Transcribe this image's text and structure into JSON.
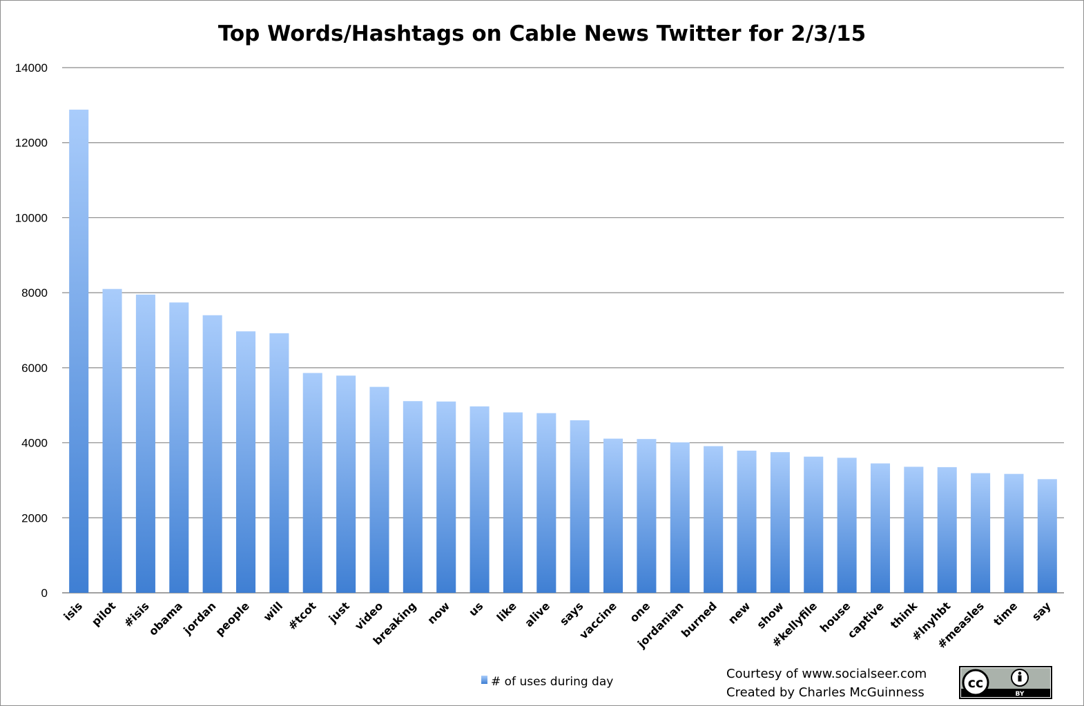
{
  "chart_data": {
    "type": "bar",
    "title": "Top Words/Hashtags on Cable News Twitter for 2/3/15",
    "xlabel": "",
    "ylabel": "",
    "ylim": [
      0,
      14000
    ],
    "yticks": [
      0,
      2000,
      4000,
      6000,
      8000,
      10000,
      12000,
      14000
    ],
    "grid": true,
    "legend_position": "bottom",
    "categories": [
      "isis",
      "pilot",
      "#isis",
      "obama",
      "jordan",
      "people",
      "will",
      "#tcot",
      "just",
      "video",
      "breaking",
      "now",
      "us",
      "like",
      "alive",
      "says",
      "vaccine",
      "one",
      "jordanian",
      "burned",
      "new",
      "show",
      "#kellyfile",
      "house",
      "captive",
      "think",
      "#lnyhbt",
      "#measles",
      "time",
      "say"
    ],
    "series": [
      {
        "name": "# of uses during day",
        "color": "#5b8fdc",
        "values": [
          12880,
          8100,
          7950,
          7740,
          7400,
          6970,
          6920,
          5860,
          5790,
          5490,
          5110,
          5100,
          4970,
          4810,
          4790,
          4600,
          4110,
          4100,
          4010,
          3910,
          3790,
          3750,
          3630,
          3600,
          3450,
          3360,
          3350,
          3190,
          3170,
          3030
        ]
      }
    ]
  },
  "credits": {
    "line1": "Courtesy of www.socialseer.com",
    "line2": "Created by Charles McGuinness"
  },
  "license_badge": {
    "icon": "cc-by-icon",
    "text_cc": "cc",
    "text_by": "BY"
  },
  "colors": {
    "bar_top": "#a9ccfb",
    "bar_bottom": "#3f7fd3",
    "grid": "#8a8a8a"
  }
}
